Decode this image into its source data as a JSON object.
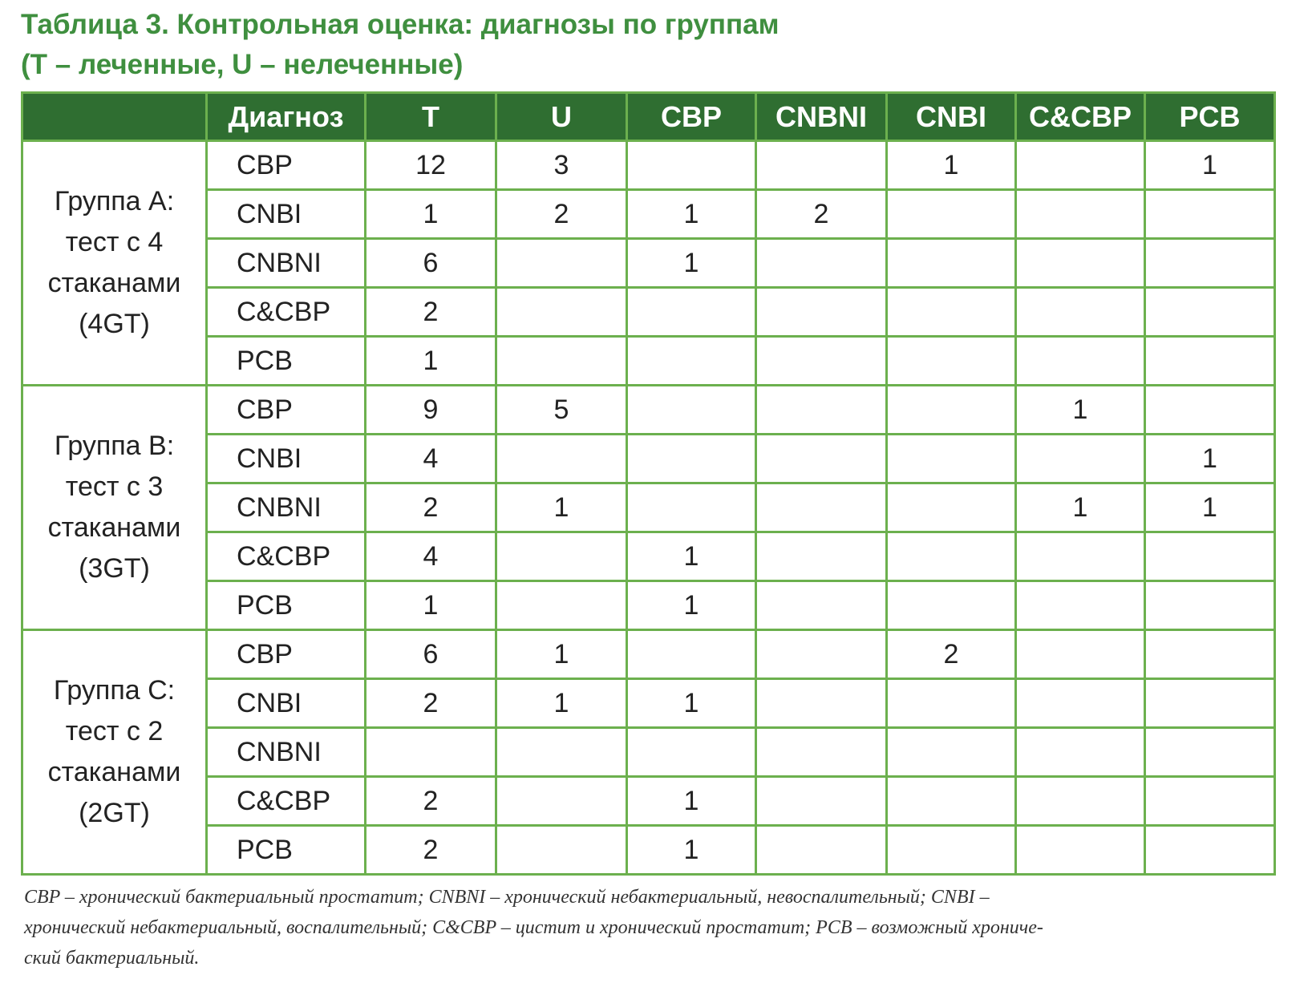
{
  "title": [
    "Таблица 3. Контрольная оценка: диагнозы по группам",
    "(T – леченные, U – нелеченные)"
  ],
  "table": {
    "header": [
      "Диагноз",
      "T",
      "U",
      "CBP",
      "CNBNI",
      "CNBI",
      "C&CBP",
      "PCB"
    ],
    "groups": [
      {
        "label": [
          "Группа А:",
          "тест с 4",
          "стаканами",
          "(4GT)"
        ],
        "rows": [
          {
            "diagnosis": "CBP",
            "cells": [
              12,
              3,
              null,
              null,
              1,
              null,
              1
            ]
          },
          {
            "diagnosis": "CNBI",
            "cells": [
              1,
              2,
              1,
              2,
              null,
              null,
              null
            ]
          },
          {
            "diagnosis": "CNBNI",
            "cells": [
              6,
              null,
              1,
              null,
              null,
              null,
              null
            ]
          },
          {
            "diagnosis": "C&CBP",
            "cells": [
              2,
              null,
              null,
              null,
              null,
              null,
              null
            ]
          },
          {
            "diagnosis": "PCB",
            "cells": [
              1,
              null,
              null,
              null,
              null,
              null,
              null
            ]
          }
        ]
      },
      {
        "label": [
          "Группа B:",
          "тест с 3",
          "стаканами",
          "(3GT)"
        ],
        "rows": [
          {
            "diagnosis": "CBP",
            "cells": [
              9,
              5,
              null,
              null,
              null,
              1,
              null
            ]
          },
          {
            "diagnosis": "CNBI",
            "cells": [
              4,
              null,
              null,
              null,
              null,
              null,
              1
            ]
          },
          {
            "diagnosis": "CNBNI",
            "cells": [
              2,
              1,
              null,
              null,
              null,
              1,
              1
            ]
          },
          {
            "diagnosis": "C&CBP",
            "cells": [
              4,
              null,
              1,
              null,
              null,
              null,
              null
            ]
          },
          {
            "diagnosis": "PCB",
            "cells": [
              1,
              null,
              1,
              null,
              null,
              null,
              null
            ]
          }
        ]
      },
      {
        "label": [
          "Группа C:",
          "тест с 2",
          "стаканами",
          "(2GT)"
        ],
        "rows": [
          {
            "diagnosis": "CBP",
            "cells": [
              6,
              1,
              null,
              null,
              2,
              null,
              null
            ]
          },
          {
            "diagnosis": "CNBI",
            "cells": [
              2,
              1,
              1,
              null,
              null,
              null,
              null
            ]
          },
          {
            "diagnosis": "CNBNI",
            "cells": [
              null,
              null,
              null,
              null,
              null,
              null,
              null
            ]
          },
          {
            "diagnosis": "C&CBP",
            "cells": [
              2,
              null,
              1,
              null,
              null,
              null,
              null
            ]
          },
          {
            "diagnosis": "PCB",
            "cells": [
              2,
              null,
              1,
              null,
              null,
              null,
              null
            ]
          }
        ]
      }
    ]
  },
  "footnote": [
    "CBP – хронический бактериальный простатит; CNBNI – хронический небактериальный, невоспалительный; CNBI –",
    "хронический небактериальный, воспалительный; C&CBP – цистит и хронический простатит; PCB – возможный хрониче-",
    "ский бактериальный."
  ]
}
